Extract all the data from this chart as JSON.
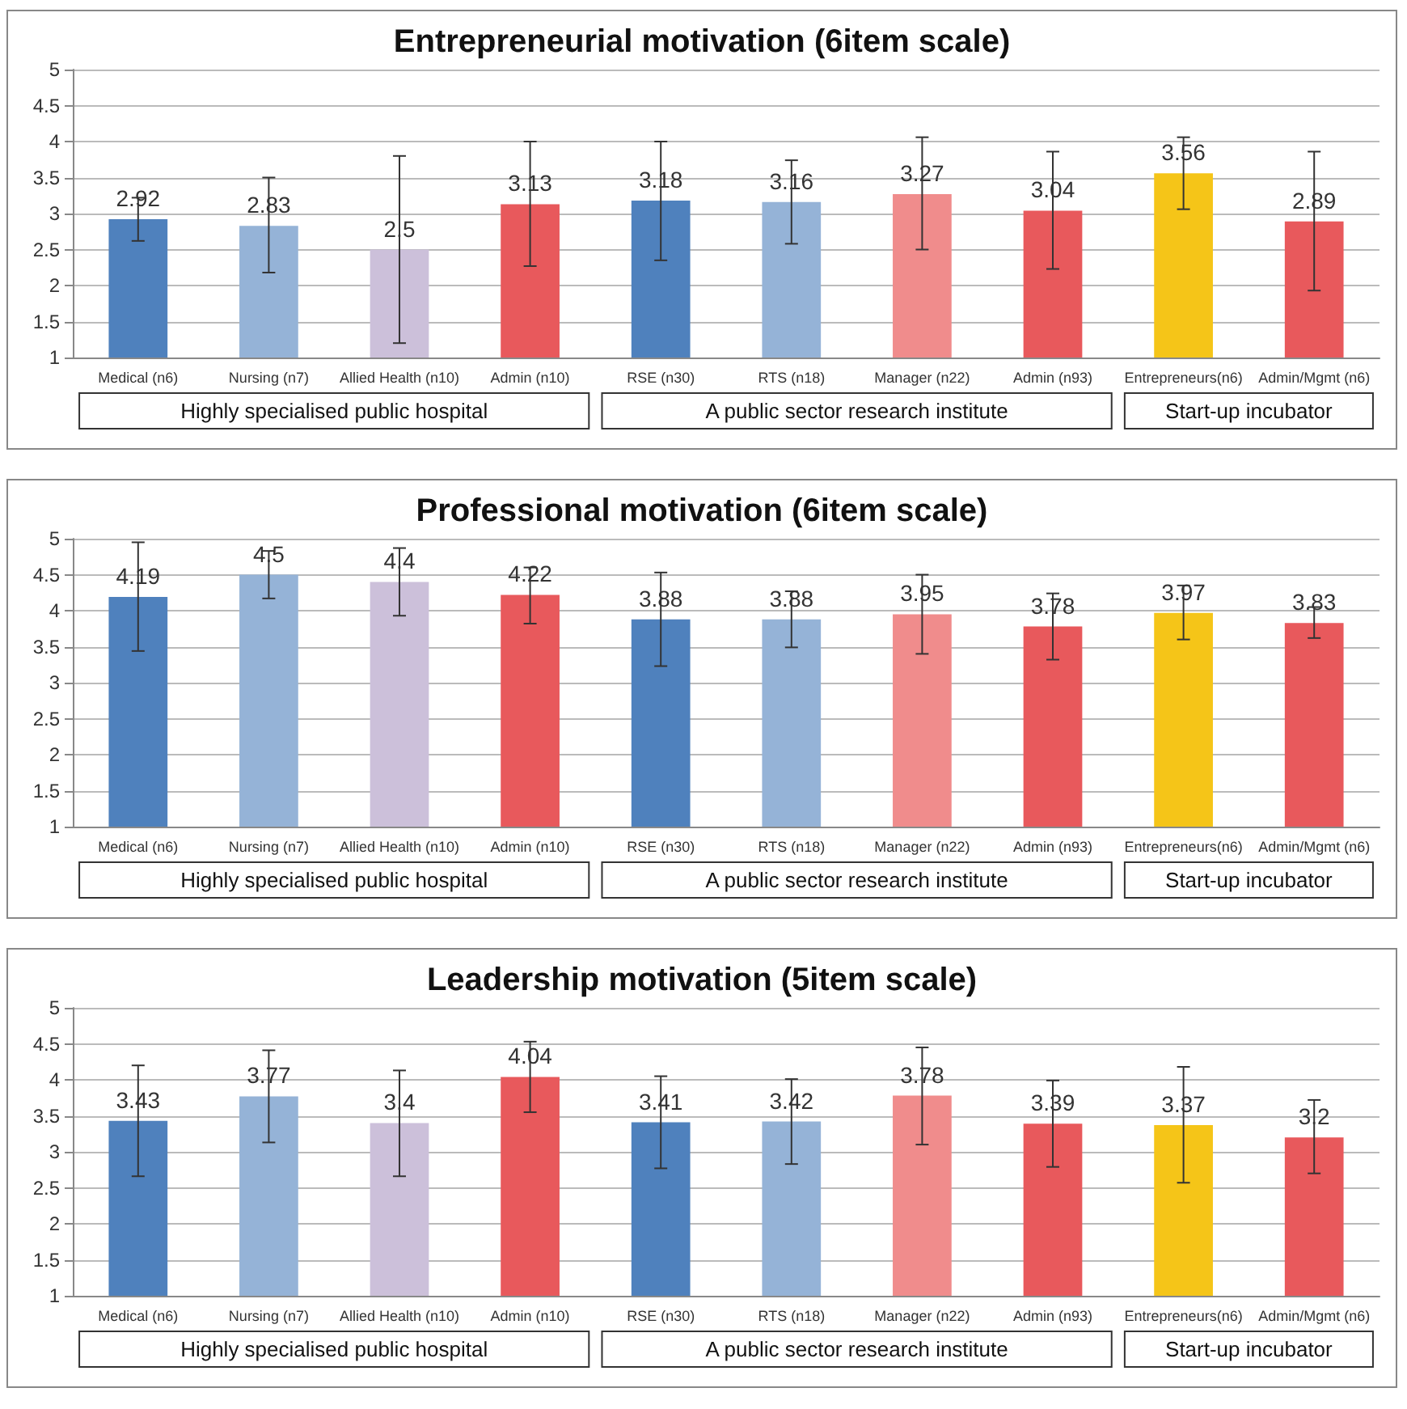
{
  "chart_data": [
    {
      "type": "bar",
      "title": "Entrepreneurial motivation (6item scale)",
      "categories": [
        "Medical (n6)",
        "Nursing (n7)",
        "Allied Health (n10)",
        "Admin (n10)",
        "RSE (n30)",
        "RTS (n18)",
        "Manager (n22)",
        "Admin (n93)",
        "Entrepreneurs(n6)",
        "Admin/Mgmt (n6)"
      ],
      "values": [
        2.92,
        2.83,
        2.5,
        3.13,
        3.18,
        3.16,
        3.27,
        3.04,
        3.56,
        2.89
      ],
      "errors": [
        [
          2.62,
          3.22
        ],
        [
          2.18,
          3.5
        ],
        [
          1.2,
          3.8
        ],
        [
          2.27,
          4.0
        ],
        [
          2.35,
          4.0
        ],
        [
          2.58,
          3.74
        ],
        [
          2.5,
          4.06
        ],
        [
          2.23,
          3.86
        ],
        [
          3.06,
          4.06
        ],
        [
          1.93,
          3.86
        ]
      ],
      "colors": [
        "#4f81bd",
        "#95b3d7",
        "#ccc0da",
        "#e8595c",
        "#4f81bd",
        "#95b3d7",
        "#f08c8c",
        "#e8595c",
        "#f5c518",
        "#e8595c"
      ],
      "data_labels": true,
      "ylim": [
        1,
        5
      ],
      "yticks": [
        1,
        1.5,
        2,
        2.5,
        3,
        3.5,
        4,
        4.5,
        5
      ],
      "grid": "y",
      "annotations": [
        "Highly specialised public hospital",
        "A public sector research institute",
        "Start-up incubator"
      ]
    },
    {
      "type": "bar",
      "title": "Professional motivation (6item scale)",
      "categories": [
        "Medical (n6)",
        "Nursing (n7)",
        "Allied Health (n10)",
        "Admin (n10)",
        "RSE (n30)",
        "RTS (n18)",
        "Manager (n22)",
        "Admin (n93)",
        "Entrepreneurs(n6)",
        "Admin/Mgmt (n6)"
      ],
      "values": [
        4.19,
        4.5,
        4.4,
        4.22,
        3.88,
        3.88,
        3.95,
        3.78,
        3.97,
        3.83
      ],
      "errors": [
        [
          3.44,
          4.95
        ],
        [
          4.17,
          4.83
        ],
        [
          3.93,
          4.87
        ],
        [
          3.82,
          4.6
        ],
        [
          3.23,
          4.53
        ],
        [
          3.49,
          4.27
        ],
        [
          3.4,
          4.5
        ],
        [
          3.32,
          4.24
        ],
        [
          3.6,
          4.35
        ],
        [
          3.62,
          4.05
        ]
      ],
      "colors": [
        "#4f81bd",
        "#95b3d7",
        "#ccc0da",
        "#e8595c",
        "#4f81bd",
        "#95b3d7",
        "#f08c8c",
        "#e8595c",
        "#f5c518",
        "#e8595c"
      ],
      "data_labels": true,
      "ylim": [
        1,
        5
      ],
      "yticks": [
        1,
        1.5,
        2,
        2.5,
        3,
        3.5,
        4,
        4.5,
        5
      ],
      "grid": "y",
      "annotations": [
        "Highly specialised public hospital",
        "A public sector research institute",
        "Start-up incubator"
      ]
    },
    {
      "type": "bar",
      "title": "Leadership motivation (5item scale)",
      "categories": [
        "Medical (n6)",
        "Nursing (n7)",
        "Allied Health (n10)",
        "Admin (n10)",
        "RSE (n30)",
        "RTS (n18)",
        "Manager (n22)",
        "Admin (n93)",
        "Entrepreneurs(n6)",
        "Admin/Mgmt (n6)"
      ],
      "values": [
        3.43,
        3.77,
        3.4,
        4.04,
        3.41,
        3.42,
        3.78,
        3.39,
        3.37,
        3.2
      ],
      "errors": [
        [
          2.66,
          4.2
        ],
        [
          3.13,
          4.41
        ],
        [
          2.66,
          4.13
        ],
        [
          3.55,
          4.53
        ],
        [
          2.77,
          4.05
        ],
        [
          2.83,
          4.01
        ],
        [
          3.1,
          4.45
        ],
        [
          2.79,
          3.99
        ],
        [
          2.57,
          4.18
        ],
        [
          2.7,
          3.72
        ]
      ],
      "colors": [
        "#4f81bd",
        "#95b3d7",
        "#ccc0da",
        "#e8595c",
        "#4f81bd",
        "#95b3d7",
        "#f08c8c",
        "#e8595c",
        "#f5c518",
        "#e8595c"
      ],
      "data_labels": true,
      "ylim": [
        1,
        5
      ],
      "yticks": [
        1,
        1.5,
        2,
        2.5,
        3,
        3.5,
        4,
        4.5,
        5
      ],
      "grid": "y",
      "annotations": [
        "Highly specialised public hospital",
        "A public sector research institute",
        "Start-up incubator"
      ]
    }
  ]
}
